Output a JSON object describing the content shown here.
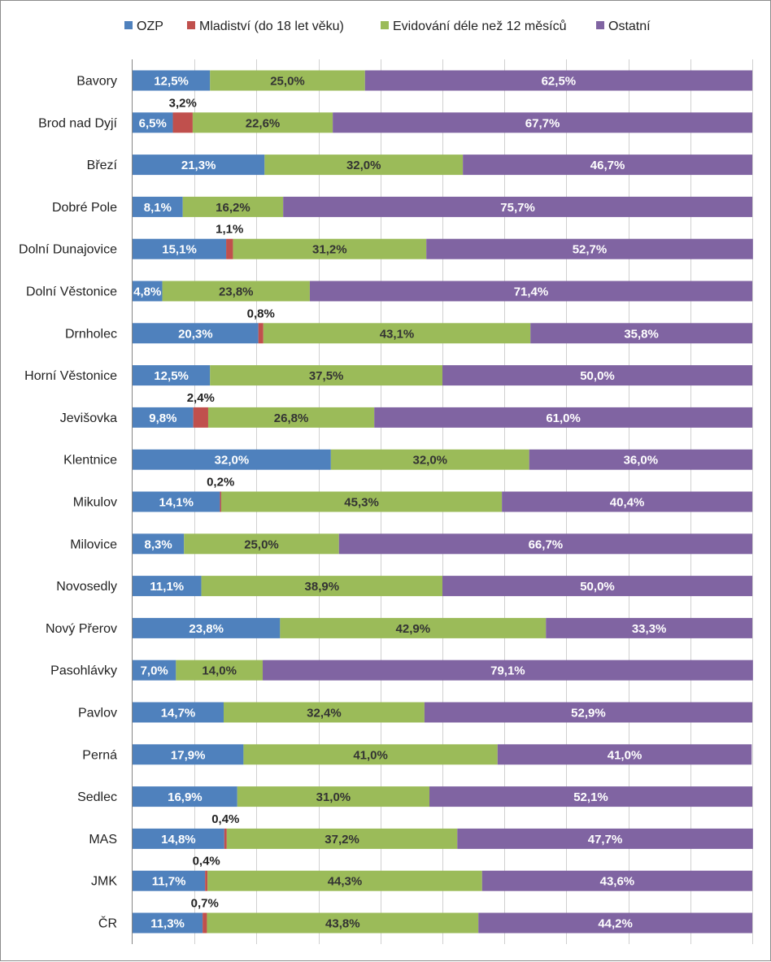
{
  "chart_data": {
    "type": "bar",
    "orientation": "horizontal",
    "stacked": "percent",
    "title": "",
    "xlabel": "",
    "ylabel": "",
    "xlim": [
      0,
      100
    ],
    "grid": true,
    "legend_position": "top",
    "categories": [
      "Bavory",
      "Brod nad Dyjí",
      "Březí",
      "Dobré Pole",
      "Dolní Dunajovice",
      "Dolní Věstonice",
      "Drnholec",
      "Horní Věstonice",
      "Jevišovka",
      "Klentnice",
      "Mikulov",
      "Milovice",
      "Novosedly",
      "Nový Přerov",
      "Pasohlávky",
      "Pavlov",
      "Perná",
      "Sedlec",
      "MAS",
      "JMK",
      "ČR"
    ],
    "series": [
      {
        "name": "OZP",
        "color": "#4F81BD",
        "values": [
          12.5,
          6.5,
          21.3,
          8.1,
          15.1,
          4.8,
          20.3,
          12.5,
          9.8,
          32.0,
          14.1,
          8.3,
          11.1,
          23.8,
          7.0,
          14.7,
          17.9,
          16.9,
          14.8,
          11.7,
          11.3
        ],
        "labels": [
          "12,5%",
          "6,5%",
          "21,3%",
          "8,1%",
          "15,1%",
          "4,8%",
          "20,3%",
          "12,5%",
          "9,8%",
          "32,0%",
          "14,1%",
          "8,3%",
          "11,1%",
          "23,8%",
          "7,0%",
          "14,7%",
          "17,9%",
          "16,9%",
          "14,8%",
          "11,7%",
          "11,3%"
        ]
      },
      {
        "name": "Mladiství (do 18 let věku)",
        "color": "#C0504D",
        "values": [
          0,
          3.2,
          0,
          0,
          1.1,
          0,
          0.8,
          0,
          2.4,
          0,
          0.2,
          0,
          0,
          0,
          0,
          0,
          0,
          0,
          0.4,
          0.4,
          0.7
        ],
        "labels": [
          "",
          "3,2%",
          "",
          "",
          "1,1%",
          "",
          "0,8%",
          "",
          "2,4%",
          "",
          "0,2%",
          "",
          "",
          "",
          "",
          "",
          "",
          "",
          "0,4%",
          "0,4%",
          "0,7%"
        ]
      },
      {
        "name": "Evidování déle než 12 měsíců",
        "color": "#9BBB59",
        "values": [
          25.0,
          22.6,
          32.0,
          16.2,
          31.2,
          23.8,
          43.1,
          37.5,
          26.8,
          32.0,
          45.3,
          25.0,
          38.9,
          42.9,
          14.0,
          32.4,
          41.0,
          31.0,
          37.2,
          44.3,
          43.8
        ],
        "labels": [
          "25,0%",
          "22,6%",
          "32,0%",
          "16,2%",
          "31,2%",
          "23,8%",
          "43,1%",
          "37,5%",
          "26,8%",
          "32,0%",
          "45,3%",
          "25,0%",
          "38,9%",
          "42,9%",
          "14,0%",
          "32,4%",
          "41,0%",
          "31,0%",
          "37,2%",
          "44,3%",
          "43,8%"
        ]
      },
      {
        "name": "Ostatní",
        "color": "#8064A2",
        "values": [
          62.5,
          67.7,
          46.7,
          75.7,
          52.7,
          71.4,
          35.8,
          50.0,
          61.0,
          36.0,
          40.4,
          66.7,
          50.0,
          33.3,
          79.1,
          52.9,
          41.0,
          52.1,
          47.7,
          43.6,
          44.2
        ],
        "labels": [
          "62,5%",
          "67,7%",
          "46,7%",
          "75,7%",
          "52,7%",
          "71,4%",
          "35,8%",
          "50,0%",
          "61,0%",
          "36,0%",
          "40,4%",
          "66,7%",
          "50,0%",
          "33,3%",
          "79,1%",
          "52,9%",
          "41,0%",
          "52,1%",
          "47,7%",
          "43,6%",
          "44,2%"
        ]
      }
    ]
  }
}
